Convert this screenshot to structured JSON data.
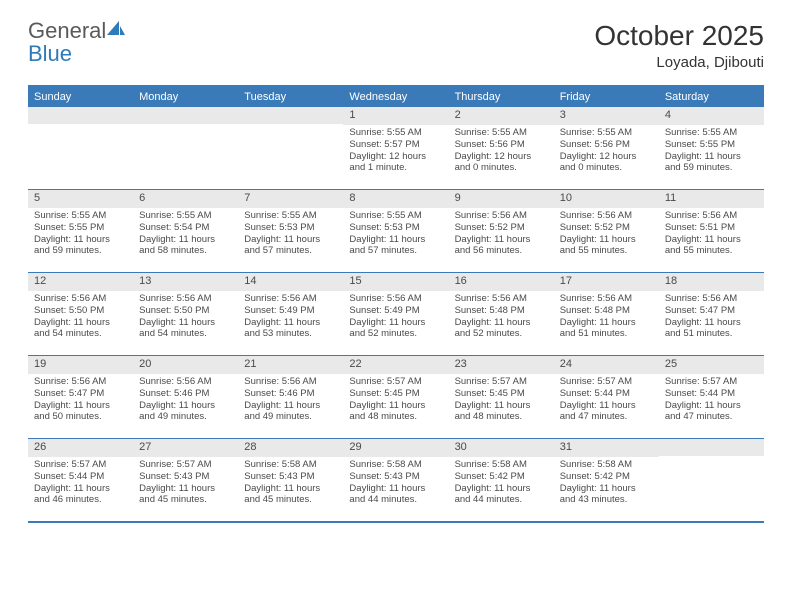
{
  "logo": {
    "word1": "General",
    "word2": "Blue"
  },
  "title": "October 2025",
  "location": "Loyada, Djibouti",
  "colors": {
    "header_bg": "#3a7ab8",
    "header_text": "#ffffff",
    "daynum_bg": "#e9e9e9",
    "text": "#4a4a4a",
    "border": "#3a7ab8"
  },
  "day_names": [
    "Sunday",
    "Monday",
    "Tuesday",
    "Wednesday",
    "Thursday",
    "Friday",
    "Saturday"
  ],
  "weeks": [
    [
      {
        "n": "",
        "sr": "",
        "ss": "",
        "dl": ""
      },
      {
        "n": "",
        "sr": "",
        "ss": "",
        "dl": ""
      },
      {
        "n": "",
        "sr": "",
        "ss": "",
        "dl": ""
      },
      {
        "n": "1",
        "sr": "Sunrise: 5:55 AM",
        "ss": "Sunset: 5:57 PM",
        "dl": "Daylight: 12 hours and 1 minute."
      },
      {
        "n": "2",
        "sr": "Sunrise: 5:55 AM",
        "ss": "Sunset: 5:56 PM",
        "dl": "Daylight: 12 hours and 0 minutes."
      },
      {
        "n": "3",
        "sr": "Sunrise: 5:55 AM",
        "ss": "Sunset: 5:56 PM",
        "dl": "Daylight: 12 hours and 0 minutes."
      },
      {
        "n": "4",
        "sr": "Sunrise: 5:55 AM",
        "ss": "Sunset: 5:55 PM",
        "dl": "Daylight: 11 hours and 59 minutes."
      }
    ],
    [
      {
        "n": "5",
        "sr": "Sunrise: 5:55 AM",
        "ss": "Sunset: 5:55 PM",
        "dl": "Daylight: 11 hours and 59 minutes."
      },
      {
        "n": "6",
        "sr": "Sunrise: 5:55 AM",
        "ss": "Sunset: 5:54 PM",
        "dl": "Daylight: 11 hours and 58 minutes."
      },
      {
        "n": "7",
        "sr": "Sunrise: 5:55 AM",
        "ss": "Sunset: 5:53 PM",
        "dl": "Daylight: 11 hours and 57 minutes."
      },
      {
        "n": "8",
        "sr": "Sunrise: 5:55 AM",
        "ss": "Sunset: 5:53 PM",
        "dl": "Daylight: 11 hours and 57 minutes."
      },
      {
        "n": "9",
        "sr": "Sunrise: 5:56 AM",
        "ss": "Sunset: 5:52 PM",
        "dl": "Daylight: 11 hours and 56 minutes."
      },
      {
        "n": "10",
        "sr": "Sunrise: 5:56 AM",
        "ss": "Sunset: 5:52 PM",
        "dl": "Daylight: 11 hours and 55 minutes."
      },
      {
        "n": "11",
        "sr": "Sunrise: 5:56 AM",
        "ss": "Sunset: 5:51 PM",
        "dl": "Daylight: 11 hours and 55 minutes."
      }
    ],
    [
      {
        "n": "12",
        "sr": "Sunrise: 5:56 AM",
        "ss": "Sunset: 5:50 PM",
        "dl": "Daylight: 11 hours and 54 minutes."
      },
      {
        "n": "13",
        "sr": "Sunrise: 5:56 AM",
        "ss": "Sunset: 5:50 PM",
        "dl": "Daylight: 11 hours and 54 minutes."
      },
      {
        "n": "14",
        "sr": "Sunrise: 5:56 AM",
        "ss": "Sunset: 5:49 PM",
        "dl": "Daylight: 11 hours and 53 minutes."
      },
      {
        "n": "15",
        "sr": "Sunrise: 5:56 AM",
        "ss": "Sunset: 5:49 PM",
        "dl": "Daylight: 11 hours and 52 minutes."
      },
      {
        "n": "16",
        "sr": "Sunrise: 5:56 AM",
        "ss": "Sunset: 5:48 PM",
        "dl": "Daylight: 11 hours and 52 minutes."
      },
      {
        "n": "17",
        "sr": "Sunrise: 5:56 AM",
        "ss": "Sunset: 5:48 PM",
        "dl": "Daylight: 11 hours and 51 minutes."
      },
      {
        "n": "18",
        "sr": "Sunrise: 5:56 AM",
        "ss": "Sunset: 5:47 PM",
        "dl": "Daylight: 11 hours and 51 minutes."
      }
    ],
    [
      {
        "n": "19",
        "sr": "Sunrise: 5:56 AM",
        "ss": "Sunset: 5:47 PM",
        "dl": "Daylight: 11 hours and 50 minutes."
      },
      {
        "n": "20",
        "sr": "Sunrise: 5:56 AM",
        "ss": "Sunset: 5:46 PM",
        "dl": "Daylight: 11 hours and 49 minutes."
      },
      {
        "n": "21",
        "sr": "Sunrise: 5:56 AM",
        "ss": "Sunset: 5:46 PM",
        "dl": "Daylight: 11 hours and 49 minutes."
      },
      {
        "n": "22",
        "sr": "Sunrise: 5:57 AM",
        "ss": "Sunset: 5:45 PM",
        "dl": "Daylight: 11 hours and 48 minutes."
      },
      {
        "n": "23",
        "sr": "Sunrise: 5:57 AM",
        "ss": "Sunset: 5:45 PM",
        "dl": "Daylight: 11 hours and 48 minutes."
      },
      {
        "n": "24",
        "sr": "Sunrise: 5:57 AM",
        "ss": "Sunset: 5:44 PM",
        "dl": "Daylight: 11 hours and 47 minutes."
      },
      {
        "n": "25",
        "sr": "Sunrise: 5:57 AM",
        "ss": "Sunset: 5:44 PM",
        "dl": "Daylight: 11 hours and 47 minutes."
      }
    ],
    [
      {
        "n": "26",
        "sr": "Sunrise: 5:57 AM",
        "ss": "Sunset: 5:44 PM",
        "dl": "Daylight: 11 hours and 46 minutes."
      },
      {
        "n": "27",
        "sr": "Sunrise: 5:57 AM",
        "ss": "Sunset: 5:43 PM",
        "dl": "Daylight: 11 hours and 45 minutes."
      },
      {
        "n": "28",
        "sr": "Sunrise: 5:58 AM",
        "ss": "Sunset: 5:43 PM",
        "dl": "Daylight: 11 hours and 45 minutes."
      },
      {
        "n": "29",
        "sr": "Sunrise: 5:58 AM",
        "ss": "Sunset: 5:43 PM",
        "dl": "Daylight: 11 hours and 44 minutes."
      },
      {
        "n": "30",
        "sr": "Sunrise: 5:58 AM",
        "ss": "Sunset: 5:42 PM",
        "dl": "Daylight: 11 hours and 44 minutes."
      },
      {
        "n": "31",
        "sr": "Sunrise: 5:58 AM",
        "ss": "Sunset: 5:42 PM",
        "dl": "Daylight: 11 hours and 43 minutes."
      },
      {
        "n": "",
        "sr": "",
        "ss": "",
        "dl": ""
      }
    ]
  ]
}
